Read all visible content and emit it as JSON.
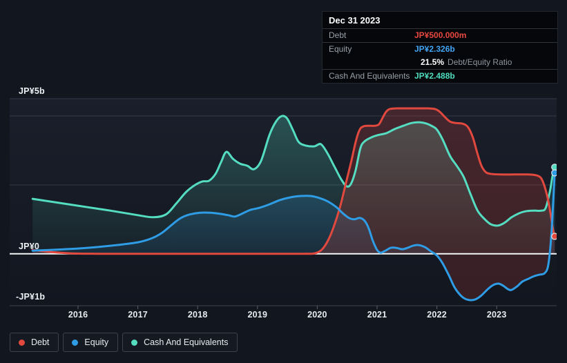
{
  "axis": {
    "y_labels": [
      "JP¥5b",
      "JP¥0",
      "-JP¥1b"
    ],
    "x_labels": [
      "2016",
      "2017",
      "2018",
      "2019",
      "2020",
      "2021",
      "2022",
      "2023"
    ]
  },
  "tooltip": {
    "date": "Dec 31 2023",
    "debt_label": "Debt",
    "debt_value": "JP¥500.000m",
    "equity_label": "Equity",
    "equity_value": "JP¥2.326b",
    "ratio_value": "21.5%",
    "ratio_label": "Debt/Equity Ratio",
    "cash_label": "Cash And Equivalents",
    "cash_value": "JP¥2.488b"
  },
  "legend": {
    "items": [
      {
        "id": "debt",
        "label": "Debt"
      },
      {
        "id": "equity",
        "label": "Equity"
      },
      {
        "id": "cash",
        "label": "Cash And Equivalents"
      }
    ]
  },
  "colors": {
    "debt": "#e2493e",
    "equity": "#2f9de6",
    "cash": "#55ddc2",
    "debt_value_text": "#e8483f",
    "equity_value_text": "#42a5f5",
    "cash_value_text": "#4fdcbe",
    "zero_line": "#f5f7f8",
    "gridline": "#343b46",
    "axis_line": "#3f4652",
    "tick": "#5a616b"
  },
  "chart_data": {
    "type": "area",
    "unit": "JP¥ billions",
    "x_range": [
      2015.2,
      2024.0
    ],
    "x_ticks": [
      2016,
      2017,
      2018,
      2019,
      2020,
      2021,
      2022,
      2023
    ],
    "y_axis": {
      "tick_labels": [
        "JP¥5b",
        "JP¥0",
        "-JP¥1b"
      ],
      "tick_values_b": [
        5,
        0,
        -1
      ]
    },
    "legend_position": "bottom",
    "grid": "horizontal-only",
    "end_date": "Dec 31 2023",
    "end_values": {
      "debt_b": 0.5,
      "equity_b": 2.326,
      "cash_b": 2.488,
      "debt_equity_ratio_pct": 21.5
    },
    "series": [
      {
        "name": "Debt",
        "color_key": "debt",
        "points": [
          [
            2015.24,
            0.11
          ],
          [
            2015.56,
            0.05
          ],
          [
            2015.91,
            0.01
          ],
          [
            2016.31,
            0
          ],
          [
            2017,
            0
          ],
          [
            2018,
            0
          ],
          [
            2019,
            0
          ],
          [
            2019.78,
            0
          ],
          [
            2019.95,
            0.01
          ],
          [
            2020.07,
            0.11
          ],
          [
            2020.17,
            0.35
          ],
          [
            2020.27,
            0.75
          ],
          [
            2020.38,
            1.34
          ],
          [
            2020.48,
            2.04
          ],
          [
            2020.57,
            2.67
          ],
          [
            2020.65,
            3.27
          ],
          [
            2020.71,
            3.57
          ],
          [
            2020.77,
            3.66
          ],
          [
            2020.86,
            3.68
          ],
          [
            2020.96,
            3.68
          ],
          [
            2021.03,
            3.72
          ],
          [
            2021.09,
            3.9
          ],
          [
            2021.15,
            4.08
          ],
          [
            2021.21,
            4.16
          ],
          [
            2021.33,
            4.18
          ],
          [
            2021.51,
            4.18
          ],
          [
            2021.68,
            4.18
          ],
          [
            2021.85,
            4.18
          ],
          [
            2021.97,
            4.16
          ],
          [
            2022.05,
            4.08
          ],
          [
            2022.14,
            3.92
          ],
          [
            2022.22,
            3.8
          ],
          [
            2022.31,
            3.76
          ],
          [
            2022.43,
            3.74
          ],
          [
            2022.52,
            3.64
          ],
          [
            2022.6,
            3.35
          ],
          [
            2022.67,
            2.93
          ],
          [
            2022.74,
            2.55
          ],
          [
            2022.81,
            2.36
          ],
          [
            2022.89,
            2.3
          ],
          [
            2023.06,
            2.28
          ],
          [
            2023.3,
            2.28
          ],
          [
            2023.53,
            2.28
          ],
          [
            2023.65,
            2.26
          ],
          [
            2023.74,
            2.18
          ],
          [
            2023.8,
            1.94
          ],
          [
            2023.86,
            1.54
          ],
          [
            2023.91,
            1.05
          ],
          [
            2023.94,
            0.71
          ],
          [
            2023.97,
            0.5
          ]
        ]
      },
      {
        "name": "Equity",
        "color_key": "equity",
        "points": [
          [
            2015.24,
            0.09
          ],
          [
            2016,
            0.15
          ],
          [
            2016.54,
            0.23
          ],
          [
            2017,
            0.33
          ],
          [
            2017.24,
            0.45
          ],
          [
            2017.41,
            0.61
          ],
          [
            2017.58,
            0.85
          ],
          [
            2017.72,
            1.03
          ],
          [
            2017.87,
            1.13
          ],
          [
            2018.04,
            1.18
          ],
          [
            2018.22,
            1.18
          ],
          [
            2018.37,
            1.15
          ],
          [
            2018.51,
            1.11
          ],
          [
            2018.62,
            1.07
          ],
          [
            2018.74,
            1.15
          ],
          [
            2018.88,
            1.26
          ],
          [
            2019.03,
            1.32
          ],
          [
            2019.2,
            1.42
          ],
          [
            2019.37,
            1.54
          ],
          [
            2019.54,
            1.62
          ],
          [
            2019.72,
            1.66
          ],
          [
            2019.89,
            1.66
          ],
          [
            2020.04,
            1.6
          ],
          [
            2020.18,
            1.5
          ],
          [
            2020.32,
            1.34
          ],
          [
            2020.43,
            1.16
          ],
          [
            2020.53,
            1.03
          ],
          [
            2020.62,
            0.99
          ],
          [
            2020.71,
            1.03
          ],
          [
            2020.79,
            0.95
          ],
          [
            2020.86,
            0.73
          ],
          [
            2020.93,
            0.37
          ],
          [
            2021,
            0.11
          ],
          [
            2021.06,
            0.03
          ],
          [
            2021.14,
            0.09
          ],
          [
            2021.23,
            0.17
          ],
          [
            2021.32,
            0.17
          ],
          [
            2021.42,
            0.13
          ],
          [
            2021.51,
            0.17
          ],
          [
            2021.6,
            0.23
          ],
          [
            2021.69,
            0.25
          ],
          [
            2021.8,
            0.19
          ],
          [
            2021.9,
            0.07
          ],
          [
            2022,
            -0.05
          ],
          [
            2022.09,
            -0.26
          ],
          [
            2022.2,
            -0.62
          ],
          [
            2022.3,
            -0.98
          ],
          [
            2022.41,
            -1.22
          ],
          [
            2022.51,
            -1.32
          ],
          [
            2022.63,
            -1.32
          ],
          [
            2022.73,
            -1.22
          ],
          [
            2022.85,
            -1.02
          ],
          [
            2022.94,
            -0.9
          ],
          [
            2023.03,
            -0.86
          ],
          [
            2023.11,
            -0.92
          ],
          [
            2023.19,
            -1.02
          ],
          [
            2023.25,
            -1.04
          ],
          [
            2023.34,
            -0.94
          ],
          [
            2023.43,
            -0.8
          ],
          [
            2023.53,
            -0.72
          ],
          [
            2023.63,
            -0.64
          ],
          [
            2023.72,
            -0.6
          ],
          [
            2023.8,
            -0.56
          ],
          [
            2023.86,
            -0.34
          ],
          [
            2023.91,
            0.45
          ],
          [
            2023.94,
            1.34
          ],
          [
            2023.97,
            2.326
          ]
        ]
      },
      {
        "name": "Cash And Equivalents",
        "color_key": "cash",
        "points": [
          [
            2015.24,
            1.58
          ],
          [
            2016,
            1.38
          ],
          [
            2016.54,
            1.24
          ],
          [
            2017,
            1.11
          ],
          [
            2017.26,
            1.05
          ],
          [
            2017.47,
            1.13
          ],
          [
            2017.64,
            1.44
          ],
          [
            2017.81,
            1.78
          ],
          [
            2017.96,
            1.98
          ],
          [
            2018.08,
            2.08
          ],
          [
            2018.19,
            2.1
          ],
          [
            2018.3,
            2.3
          ],
          [
            2018.39,
            2.63
          ],
          [
            2018.48,
            2.93
          ],
          [
            2018.59,
            2.73
          ],
          [
            2018.71,
            2.59
          ],
          [
            2018.83,
            2.53
          ],
          [
            2018.94,
            2.43
          ],
          [
            2019.06,
            2.67
          ],
          [
            2019.2,
            3.41
          ],
          [
            2019.31,
            3.8
          ],
          [
            2019.41,
            3.96
          ],
          [
            2019.5,
            3.88
          ],
          [
            2019.6,
            3.53
          ],
          [
            2019.69,
            3.21
          ],
          [
            2019.81,
            3.11
          ],
          [
            2019.95,
            3.09
          ],
          [
            2020.06,
            3.15
          ],
          [
            2020.17,
            2.89
          ],
          [
            2020.28,
            2.53
          ],
          [
            2020.4,
            2.14
          ],
          [
            2020.49,
            1.94
          ],
          [
            2020.56,
            2.0
          ],
          [
            2020.64,
            2.39
          ],
          [
            2020.72,
            3.03
          ],
          [
            2020.79,
            3.23
          ],
          [
            2020.91,
            3.35
          ],
          [
            2021.01,
            3.41
          ],
          [
            2021.16,
            3.47
          ],
          [
            2021.3,
            3.59
          ],
          [
            2021.44,
            3.68
          ],
          [
            2021.58,
            3.76
          ],
          [
            2021.72,
            3.78
          ],
          [
            2021.83,
            3.74
          ],
          [
            2021.93,
            3.66
          ],
          [
            2022,
            3.57
          ],
          [
            2022.1,
            3.27
          ],
          [
            2022.22,
            2.81
          ],
          [
            2022.34,
            2.51
          ],
          [
            2022.45,
            2.2
          ],
          [
            2022.57,
            1.68
          ],
          [
            2022.68,
            1.24
          ],
          [
            2022.79,
            1.01
          ],
          [
            2022.9,
            0.85
          ],
          [
            2023.02,
            0.81
          ],
          [
            2023.13,
            0.89
          ],
          [
            2023.25,
            1.05
          ],
          [
            2023.37,
            1.16
          ],
          [
            2023.48,
            1.22
          ],
          [
            2023.62,
            1.24
          ],
          [
            2023.75,
            1.24
          ],
          [
            2023.82,
            1.32
          ],
          [
            2023.89,
            1.8
          ],
          [
            2023.93,
            2.2
          ],
          [
            2023.97,
            2.488
          ]
        ]
      }
    ]
  }
}
